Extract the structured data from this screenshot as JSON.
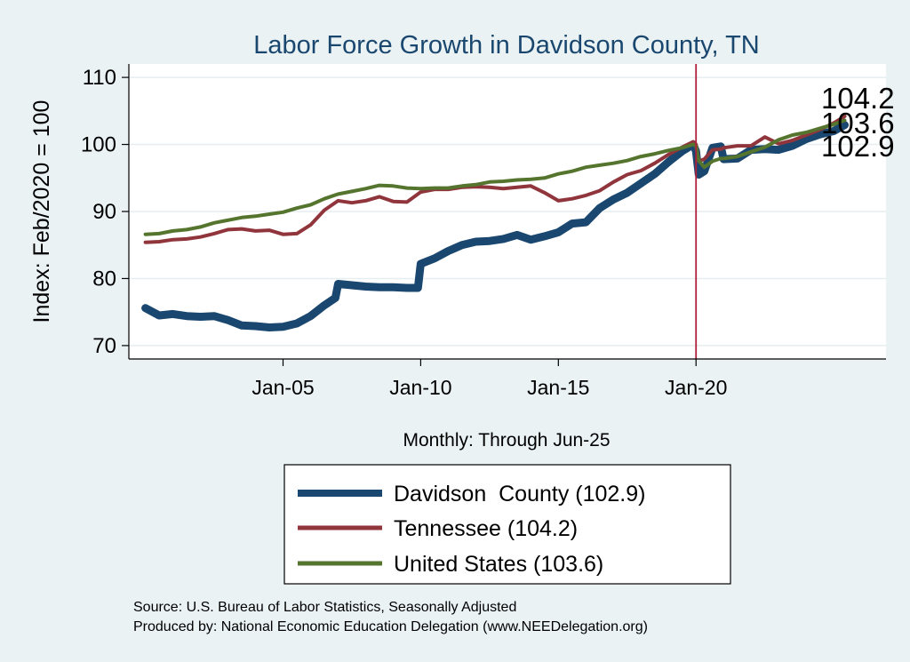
{
  "chart_data": {
    "type": "line",
    "title": "Labor Force Growth in Davidson  County, TN",
    "xlabel": "Monthly: Through Jun-25",
    "ylabel": "Index: Feb/2020 = 100",
    "x_ticks": [
      "Jan-05",
      "Jan-10",
      "Jan-15",
      "Jan-20"
    ],
    "x_tick_values": [
      2005.0,
      2010.0,
      2015.0,
      2020.0
    ],
    "xlim": [
      1999.4,
      2026.9
    ],
    "y_ticks": [
      70,
      80,
      90,
      100,
      110
    ],
    "ylim": [
      68,
      112
    ],
    "vline_x": 2020.0,
    "grid": true,
    "legend_position": "bottom",
    "end_labels": [
      "104.2",
      "103.6",
      "102.9"
    ],
    "series": [
      {
        "name": "Davidson  County (102.9)",
        "color": "#1a476f",
        "width": 9,
        "x": [
          2000.0,
          2000.5,
          2001.0,
          2001.5,
          2002.0,
          2002.5,
          2003.0,
          2003.5,
          2004.0,
          2004.5,
          2005.0,
          2005.5,
          2006.0,
          2006.5,
          2006.9,
          2007.0,
          2007.5,
          2008.0,
          2008.5,
          2009.0,
          2009.5,
          2009.9,
          2010.0,
          2010.5,
          2011.0,
          2011.5,
          2012.0,
          2012.5,
          2013.0,
          2013.5,
          2014.0,
          2014.5,
          2015.0,
          2015.5,
          2016.0,
          2016.5,
          2017.0,
          2017.5,
          2018.0,
          2018.5,
          2019.0,
          2019.5,
          2019.9,
          2020.0,
          2020.1,
          2020.3,
          2020.6,
          2020.9,
          2021.0,
          2021.5,
          2022.0,
          2022.5,
          2023.0,
          2023.5,
          2024.0,
          2024.5,
          2025.0,
          2025.4
        ],
        "values": [
          75.6,
          74.5,
          74.7,
          74.4,
          74.3,
          74.4,
          73.8,
          73.0,
          72.9,
          72.7,
          72.8,
          73.3,
          74.4,
          76.0,
          77.1,
          79.2,
          79.0,
          78.8,
          78.7,
          78.7,
          78.6,
          78.6,
          82.2,
          83.0,
          84.1,
          85.0,
          85.5,
          85.6,
          85.9,
          86.5,
          85.8,
          86.3,
          86.9,
          88.2,
          88.4,
          90.5,
          91.8,
          92.8,
          94.2,
          95.6,
          97.4,
          99.0,
          100.0,
          99.0,
          95.5,
          96.0,
          99.5,
          99.7,
          97.8,
          97.9,
          99.2,
          99.3,
          99.2,
          99.8,
          100.8,
          101.5,
          102.0,
          102.9
        ]
      },
      {
        "name": "Tennessee (104.2)",
        "color": "#90353b",
        "width": 4,
        "x": [
          2000.0,
          2000.5,
          2001.0,
          2001.5,
          2002.0,
          2002.5,
          2003.0,
          2003.5,
          2004.0,
          2004.5,
          2005.0,
          2005.5,
          2006.0,
          2006.5,
          2007.0,
          2007.5,
          2008.0,
          2008.5,
          2009.0,
          2009.5,
          2010.0,
          2010.5,
          2011.0,
          2011.5,
          2012.0,
          2012.5,
          2013.0,
          2013.5,
          2014.0,
          2014.5,
          2015.0,
          2015.5,
          2016.0,
          2016.5,
          2017.0,
          2017.5,
          2018.0,
          2018.5,
          2019.0,
          2019.5,
          2019.9,
          2020.0,
          2020.1,
          2020.3,
          2020.6,
          2020.9,
          2021.0,
          2021.5,
          2022.0,
          2022.5,
          2023.0,
          2023.5,
          2024.0,
          2024.5,
          2025.0,
          2025.4
        ],
        "values": [
          85.4,
          85.5,
          85.8,
          85.9,
          86.2,
          86.7,
          87.3,
          87.4,
          87.1,
          87.2,
          86.6,
          86.7,
          88.0,
          90.2,
          91.6,
          91.3,
          91.6,
          92.2,
          91.5,
          91.4,
          92.9,
          93.3,
          93.3,
          93.6,
          93.7,
          93.6,
          93.4,
          93.6,
          93.8,
          92.8,
          91.6,
          91.9,
          92.4,
          93.1,
          94.4,
          95.5,
          96.1,
          97.2,
          98.5,
          99.6,
          100.4,
          100.0,
          97.5,
          97.8,
          99.2,
          99.3,
          99.5,
          99.8,
          99.8,
          101.1,
          100.1,
          100.6,
          101.4,
          102.2,
          103.2,
          104.2
        ]
      },
      {
        "name": "United States (103.6)",
        "color": "#55752f",
        "width": 4,
        "x": [
          2000.0,
          2000.5,
          2001.0,
          2001.5,
          2002.0,
          2002.5,
          2003.0,
          2003.5,
          2004.0,
          2004.5,
          2005.0,
          2005.5,
          2006.0,
          2006.5,
          2007.0,
          2007.5,
          2008.0,
          2008.5,
          2009.0,
          2009.5,
          2010.0,
          2010.5,
          2011.0,
          2011.5,
          2012.0,
          2012.5,
          2013.0,
          2013.5,
          2014.0,
          2014.5,
          2015.0,
          2015.5,
          2016.0,
          2016.5,
          2017.0,
          2017.5,
          2018.0,
          2018.5,
          2019.0,
          2019.5,
          2019.9,
          2020.0,
          2020.1,
          2020.3,
          2020.6,
          2020.9,
          2021.0,
          2021.5,
          2022.0,
          2022.5,
          2023.0,
          2023.5,
          2024.0,
          2024.5,
          2025.0,
          2025.4
        ],
        "values": [
          86.6,
          86.7,
          87.1,
          87.3,
          87.7,
          88.3,
          88.7,
          89.1,
          89.3,
          89.6,
          89.9,
          90.5,
          91.0,
          91.9,
          92.6,
          93.0,
          93.4,
          93.9,
          93.8,
          93.5,
          93.4,
          93.5,
          93.5,
          93.8,
          94.0,
          94.4,
          94.5,
          94.7,
          94.8,
          95.0,
          95.6,
          96.0,
          96.6,
          96.9,
          97.2,
          97.6,
          98.2,
          98.6,
          99.1,
          99.5,
          100.0,
          99.8,
          97.6,
          96.6,
          97.5,
          97.9,
          97.9,
          98.2,
          98.9,
          99.6,
          100.7,
          101.4,
          101.8,
          102.4,
          103.0,
          103.6
        ]
      }
    ]
  },
  "source_text": "Source: U.S. Bureau of Labor Statistics, Seasonally Adjusted",
  "produced_text": "Produced by: National Economic Education Delegation (www.NEEDelegation.org)"
}
